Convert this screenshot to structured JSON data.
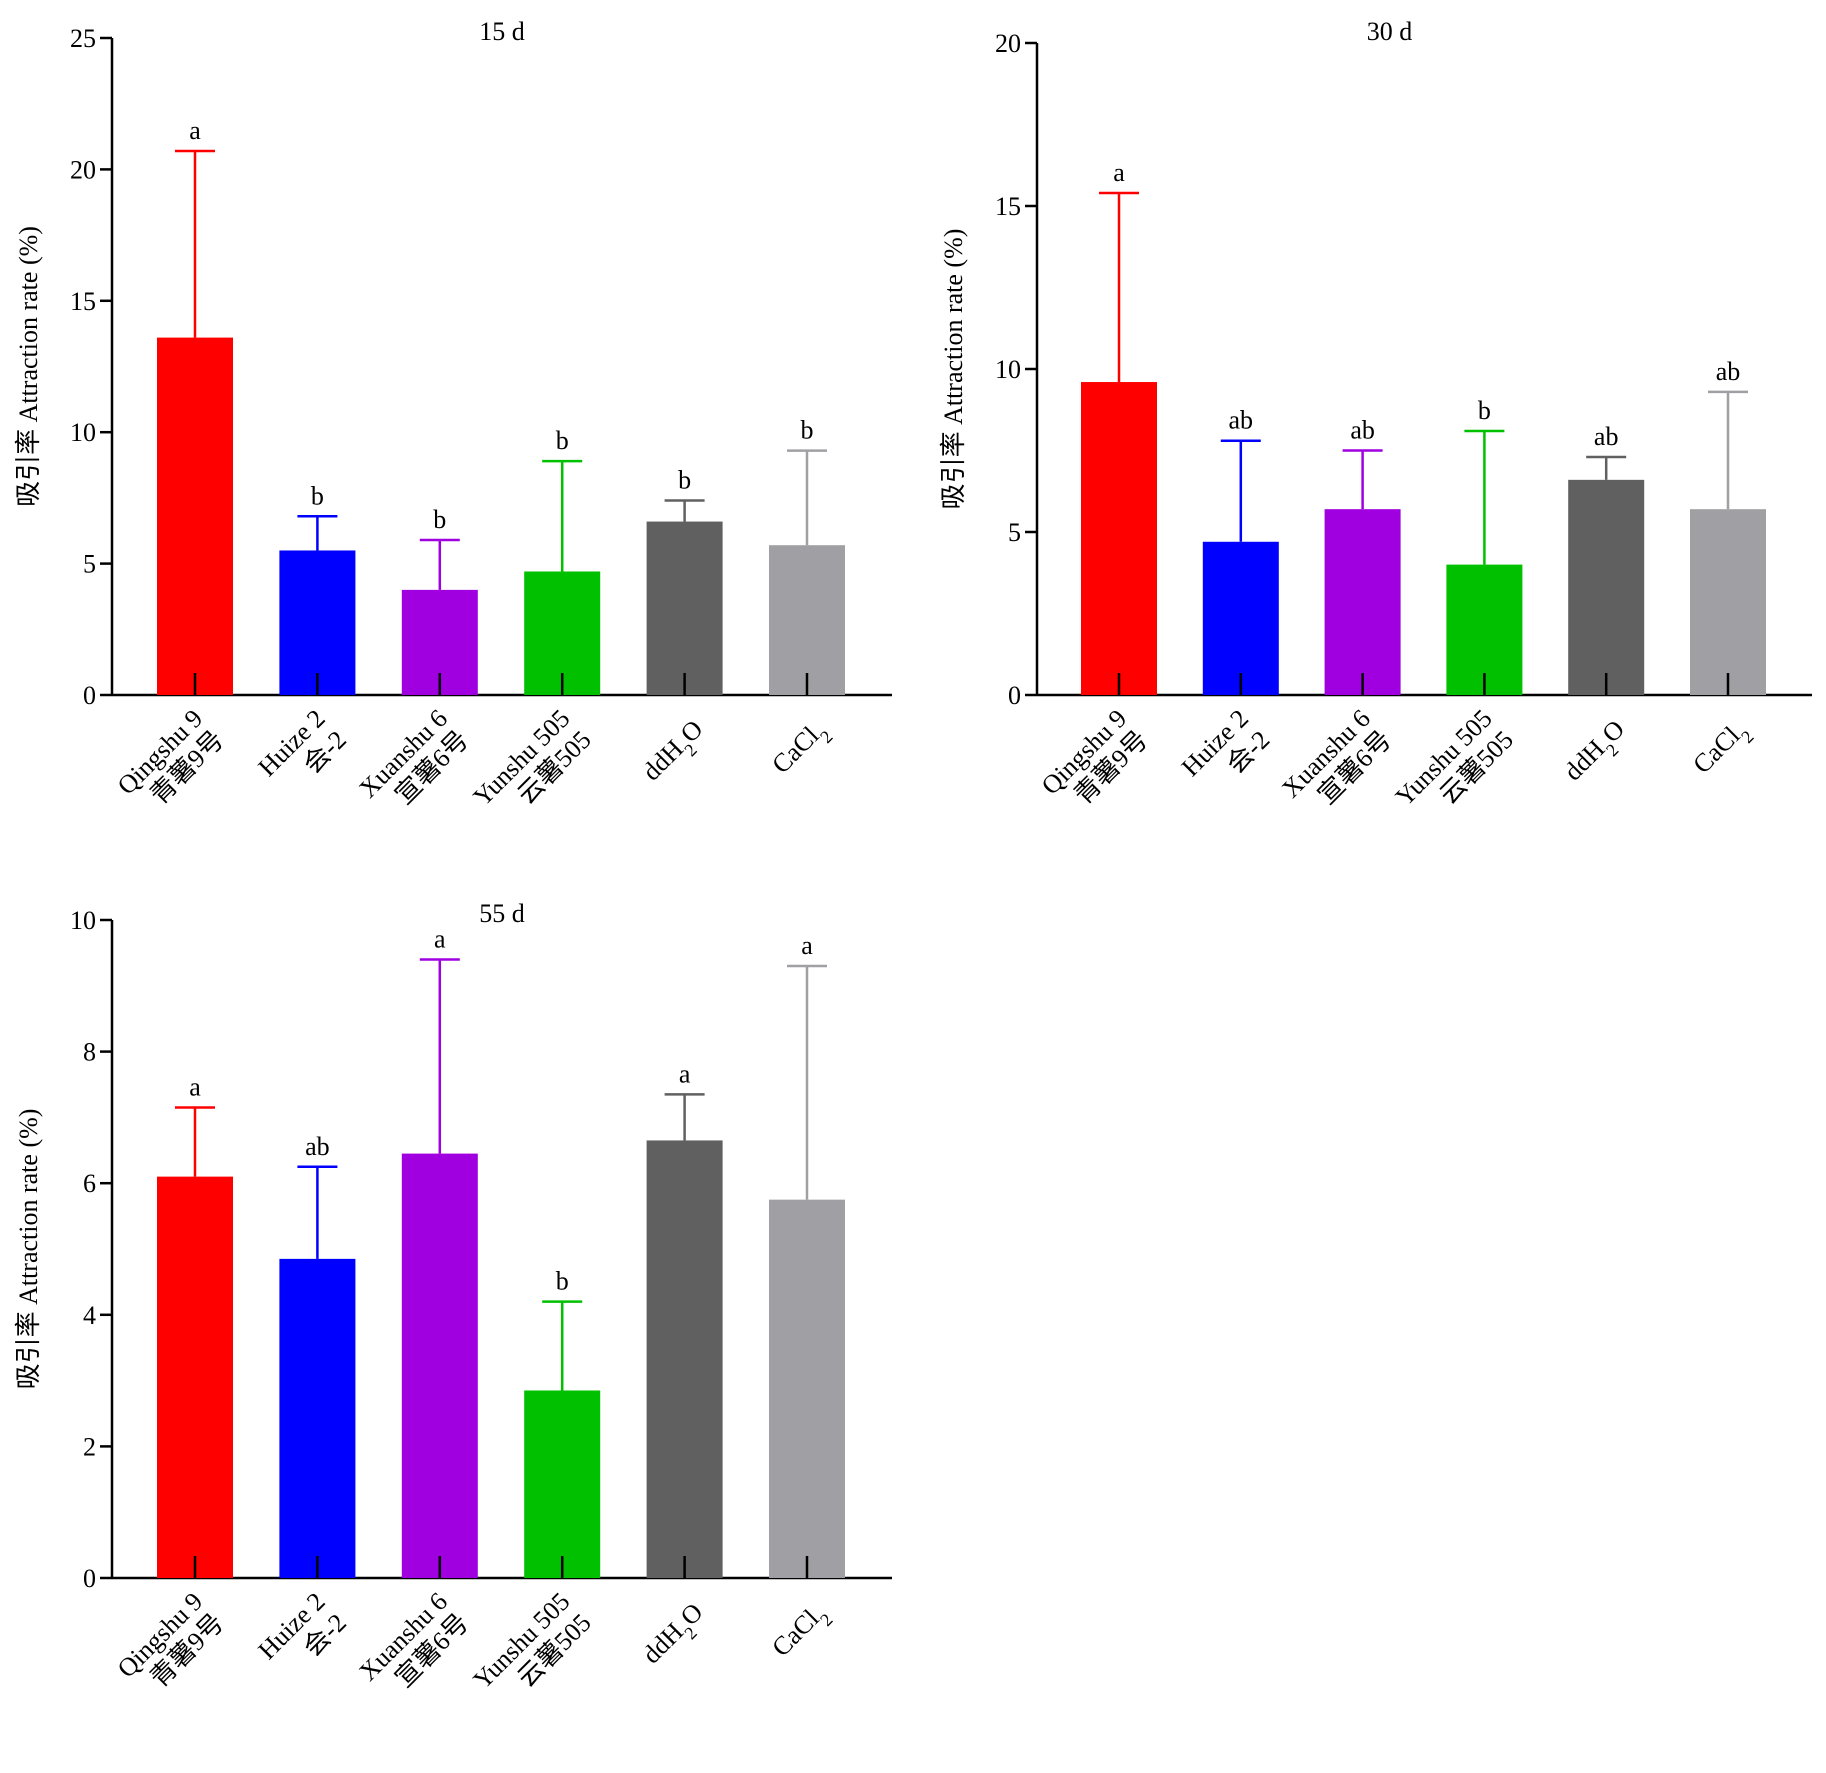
{
  "chart_data": [
    {
      "type": "bar",
      "title": "15 d",
      "ylabel": "吸引率 Attraction rate (%)",
      "ylim": [
        0,
        25
      ],
      "yticks": [
        0,
        5,
        10,
        15,
        20,
        25
      ],
      "categories": [
        [
          "青薯9号",
          "Qingshu 9"
        ],
        [
          "会-2",
          "Huize 2"
        ],
        [
          "宣薯6号",
          "Xuanshu 6"
        ],
        [
          "云薯505",
          "Yunshu 505"
        ],
        [
          "ddH2O"
        ],
        [
          "CaCl2"
        ]
      ],
      "values": [
        13.6,
        5.5,
        4.0,
        4.7,
        6.6,
        5.7
      ],
      "errors": [
        7.1,
        1.3,
        1.9,
        4.2,
        0.8,
        3.6
      ],
      "significance": [
        "a",
        "b",
        "b",
        "b",
        "b",
        "b"
      ],
      "colors": [
        "#ff0000",
        "#0000ff",
        "#a000e0",
        "#00c000",
        "#606060",
        "#a0a0a4"
      ]
    },
    {
      "type": "bar",
      "title": "30 d",
      "ylabel": "吸引率 Attraction rate (%)",
      "ylim": [
        0,
        20
      ],
      "yticks": [
        0,
        5,
        10,
        15,
        20
      ],
      "categories": [
        [
          "青薯9号",
          "Qingshu 9"
        ],
        [
          "会-2",
          "Huize 2"
        ],
        [
          "宣薯6号",
          "Xuanshu 6"
        ],
        [
          "云薯505",
          "Yunshu 505"
        ],
        [
          "ddH2O"
        ],
        [
          "CaCl2"
        ]
      ],
      "values": [
        9.6,
        4.7,
        5.7,
        4.0,
        6.6,
        5.7
      ],
      "errors": [
        5.8,
        3.1,
        1.8,
        4.1,
        0.7,
        3.6
      ],
      "significance": [
        "a",
        "ab",
        "ab",
        "b",
        "ab",
        "ab"
      ],
      "colors": [
        "#ff0000",
        "#0000ff",
        "#a000e0",
        "#00c000",
        "#606060",
        "#a0a0a4"
      ]
    },
    {
      "type": "bar",
      "title": "55 d",
      "ylabel": "吸引率 Attraction rate (%)",
      "ylim": [
        0,
        10
      ],
      "yticks": [
        0,
        2,
        4,
        6,
        8,
        10
      ],
      "categories": [
        [
          "青薯9号",
          "Qingshu 9"
        ],
        [
          "会-2",
          "Huize 2"
        ],
        [
          "宣薯6号",
          "Xuanshu 6"
        ],
        [
          "云薯505",
          "Yunshu 505"
        ],
        [
          "ddH2O"
        ],
        [
          "CaCl2"
        ]
      ],
      "values": [
        6.1,
        4.85,
        6.45,
        2.85,
        6.65,
        5.75
      ],
      "errors": [
        1.05,
        1.4,
        2.95,
        1.35,
        0.7,
        3.55
      ],
      "significance": [
        "a",
        "ab",
        "a",
        "b",
        "a",
        "a"
      ],
      "colors": [
        "#ff0000",
        "#0000ff",
        "#a000e0",
        "#00c000",
        "#606060",
        "#a0a0a4"
      ]
    }
  ]
}
